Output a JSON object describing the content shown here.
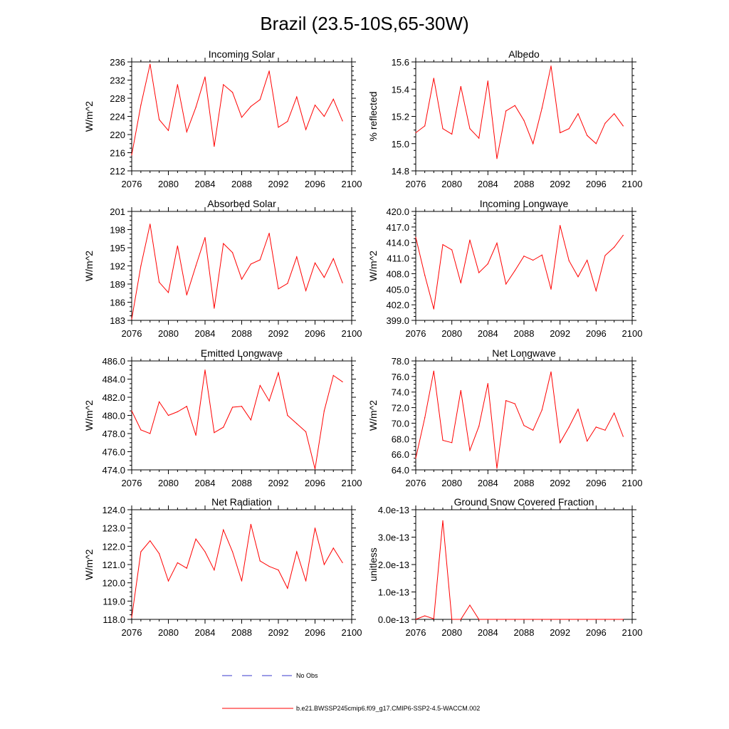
{
  "page": {
    "title": "Brazil (23.5-10S,65-30W)"
  },
  "colors": {
    "series": "#ff0000",
    "obs": "#3a3acc",
    "axis": "#000000"
  },
  "legend": {
    "obs_label": "No Obs",
    "model_label": "b.e21.BWSSP245cmip6.f09_g17.CMIP6-SSP2-4.5-WACCM.002"
  },
  "chart_data": [
    {
      "type": "line",
      "title": "Incoming Solar",
      "ylabel": "W/m^2",
      "xlim": [
        2076,
        2100
      ],
      "xticks": [
        2076,
        2080,
        2084,
        2088,
        2092,
        2096,
        2100
      ],
      "xtick_labels": [
        "2076",
        "2080",
        "2084",
        "2088",
        "2092",
        "2096",
        "2100"
      ],
      "ylim": [
        212,
        236
      ],
      "yticks": [
        212,
        216,
        220,
        224,
        228,
        232,
        236
      ],
      "ytick_labels": [
        "212",
        "216",
        "220",
        "224",
        "228",
        "232",
        "236"
      ],
      "x": [
        2076,
        2077,
        2078,
        2079,
        2080,
        2081,
        2082,
        2083,
        2084,
        2085,
        2086,
        2087,
        2088,
        2089,
        2090,
        2091,
        2092,
        2093,
        2094,
        2095,
        2096,
        2097,
        2098,
        2099
      ],
      "values": [
        215.5,
        226.5,
        235.5,
        223.3,
        220.9,
        231.0,
        220.6,
        226.0,
        232.7,
        217.4,
        231.0,
        229.3,
        223.8,
        226.2,
        227.7,
        234.0,
        221.6,
        222.9,
        228.3,
        221.1,
        226.5,
        224.0,
        227.8,
        223.0
      ]
    },
    {
      "type": "line",
      "title": "Albedo",
      "ylabel": "% reflected",
      "xlim": [
        2076,
        2100
      ],
      "xticks": [
        2076,
        2080,
        2084,
        2088,
        2092,
        2096,
        2100
      ],
      "xtick_labels": [
        "2076",
        "2080",
        "2084",
        "2088",
        "2092",
        "2096",
        "2100"
      ],
      "ylim": [
        14.8,
        15.6
      ],
      "yticks": [
        14.8,
        15.0,
        15.2,
        15.4,
        15.6
      ],
      "ytick_labels": [
        "14.8",
        "15.0",
        "15.2",
        "15.4",
        "15.6"
      ],
      "x": [
        2076,
        2077,
        2078,
        2079,
        2080,
        2081,
        2082,
        2083,
        2084,
        2085,
        2086,
        2087,
        2088,
        2089,
        2090,
        2091,
        2092,
        2093,
        2094,
        2095,
        2096,
        2097,
        2098,
        2099
      ],
      "values": [
        15.08,
        15.13,
        15.48,
        15.11,
        15.07,
        15.42,
        15.11,
        15.04,
        15.46,
        14.89,
        15.24,
        15.28,
        15.17,
        15.0,
        15.26,
        15.57,
        15.08,
        15.11,
        15.22,
        15.06,
        15.0,
        15.15,
        15.22,
        15.13
      ]
    },
    {
      "type": "line",
      "title": "Absorbed Solar",
      "ylabel": "W/m^2",
      "xlim": [
        2076,
        2100
      ],
      "xticks": [
        2076,
        2080,
        2084,
        2088,
        2092,
        2096,
        2100
      ],
      "xtick_labels": [
        "2076",
        "2080",
        "2084",
        "2088",
        "2092",
        "2096",
        "2100"
      ],
      "ylim": [
        183,
        201
      ],
      "yticks": [
        183,
        186,
        189,
        192,
        195,
        198,
        201
      ],
      "ytick_labels": [
        "183",
        "186",
        "189",
        "192",
        "195",
        "198",
        "201"
      ],
      "x": [
        2076,
        2077,
        2078,
        2079,
        2080,
        2081,
        2082,
        2083,
        2084,
        2085,
        2086,
        2087,
        2088,
        2089,
        2090,
        2091,
        2092,
        2093,
        2094,
        2095,
        2096,
        2097,
        2098,
        2099
      ],
      "values": [
        183.2,
        192.0,
        198.9,
        189.3,
        187.6,
        195.3,
        187.2,
        192.0,
        196.7,
        185.0,
        195.7,
        194.2,
        189.8,
        192.3,
        193.0,
        197.4,
        188.2,
        189.1,
        193.5,
        187.9,
        192.5,
        190.1,
        193.2,
        189.2
      ]
    },
    {
      "type": "line",
      "title": "Incoming Longwave",
      "ylabel": "W/m^2",
      "xlim": [
        2076,
        2100
      ],
      "xticks": [
        2076,
        2080,
        2084,
        2088,
        2092,
        2096,
        2100
      ],
      "xtick_labels": [
        "2076",
        "2080",
        "2084",
        "2088",
        "2092",
        "2096",
        "2100"
      ],
      "ylim": [
        399.0,
        420.0
      ],
      "yticks": [
        399,
        402,
        405,
        408,
        411,
        414,
        417,
        420
      ],
      "ytick_labels": [
        "399.0",
        "402.0",
        "405.0",
        "408.0",
        "411.0",
        "414.0",
        "417.0",
        "420.0"
      ],
      "x": [
        2076,
        2077,
        2078,
        2079,
        2080,
        2081,
        2082,
        2083,
        2084,
        2085,
        2086,
        2087,
        2088,
        2089,
        2090,
        2091,
        2092,
        2093,
        2094,
        2095,
        2096,
        2097,
        2098,
        2099
      ],
      "values": [
        415.0,
        407.7,
        401.2,
        413.6,
        412.6,
        406.2,
        414.5,
        408.2,
        409.9,
        413.9,
        406.0,
        408.6,
        411.4,
        410.6,
        411.6,
        405.0,
        417.3,
        410.5,
        407.4,
        410.6,
        404.7,
        411.5,
        413.1,
        415.4
      ]
    },
    {
      "type": "line",
      "title": "Emitted Longwave",
      "ylabel": "W/m^2",
      "xlim": [
        2076,
        2100
      ],
      "xticks": [
        2076,
        2080,
        2084,
        2088,
        2092,
        2096,
        2100
      ],
      "xtick_labels": [
        "2076",
        "2080",
        "2084",
        "2088",
        "2092",
        "2096",
        "2100"
      ],
      "ylim": [
        474.0,
        486.0
      ],
      "yticks": [
        474,
        476,
        478,
        480,
        482,
        484,
        486
      ],
      "ytick_labels": [
        "474.0",
        "476.0",
        "478.0",
        "480.0",
        "482.0",
        "484.0",
        "486.0"
      ],
      "x": [
        2076,
        2077,
        2078,
        2079,
        2080,
        2081,
        2082,
        2083,
        2084,
        2085,
        2086,
        2087,
        2088,
        2089,
        2090,
        2091,
        2092,
        2093,
        2094,
        2095,
        2096,
        2097,
        2098,
        2099
      ],
      "values": [
        480.5,
        478.4,
        478.0,
        481.5,
        480.0,
        480.4,
        481.0,
        477.8,
        485.0,
        478.1,
        478.7,
        480.9,
        481.0,
        479.5,
        483.3,
        481.6,
        484.7,
        480.0,
        479.1,
        478.2,
        474.1,
        480.5,
        484.4,
        483.7
      ]
    },
    {
      "type": "line",
      "title": "Net Longwave",
      "ylabel": "W/m^2",
      "xlim": [
        2076,
        2100
      ],
      "xticks": [
        2076,
        2080,
        2084,
        2088,
        2092,
        2096,
        2100
      ],
      "xtick_labels": [
        "2076",
        "2080",
        "2084",
        "2088",
        "2092",
        "2096",
        "2100"
      ],
      "ylim": [
        64.0,
        78.0
      ],
      "yticks": [
        64,
        66,
        68,
        70,
        72,
        74,
        76,
        78
      ],
      "ytick_labels": [
        "64.0",
        "66.0",
        "68.0",
        "70.0",
        "72.0",
        "74.0",
        "76.0",
        "78.0"
      ],
      "x": [
        2076,
        2077,
        2078,
        2079,
        2080,
        2081,
        2082,
        2083,
        2084,
        2085,
        2086,
        2087,
        2088,
        2089,
        2090,
        2091,
        2092,
        2093,
        2094,
        2095,
        2096,
        2097,
        2098,
        2099
      ],
      "values": [
        65.5,
        70.7,
        76.7,
        67.8,
        67.5,
        74.2,
        66.5,
        69.6,
        75.1,
        64.2,
        72.9,
        72.5,
        69.7,
        69.1,
        71.7,
        76.6,
        67.5,
        69.5,
        71.8,
        67.7,
        69.5,
        69.1,
        71.3,
        68.3
      ]
    },
    {
      "type": "line",
      "title": "Net Radiation",
      "ylabel": "W/m^2",
      "xlim": [
        2076,
        2100
      ],
      "xticks": [
        2076,
        2080,
        2084,
        2088,
        2092,
        2096,
        2100
      ],
      "xtick_labels": [
        "2076",
        "2080",
        "2084",
        "2088",
        "2092",
        "2096",
        "2100"
      ],
      "ylim": [
        118.0,
        124.0
      ],
      "yticks": [
        118,
        119,
        120,
        121,
        122,
        123,
        124
      ],
      "ytick_labels": [
        "118.0",
        "119.0",
        "120.0",
        "121.0",
        "122.0",
        "123.0",
        "124.0"
      ],
      "x": [
        2076,
        2077,
        2078,
        2079,
        2080,
        2081,
        2082,
        2083,
        2084,
        2085,
        2086,
        2087,
        2088,
        2089,
        2090,
        2091,
        2092,
        2093,
        2094,
        2095,
        2096,
        2097,
        2098,
        2099
      ],
      "values": [
        118.1,
        121.7,
        122.3,
        121.6,
        120.1,
        121.1,
        120.8,
        122.4,
        121.7,
        120.7,
        122.9,
        121.7,
        120.1,
        123.2,
        121.2,
        120.9,
        120.7,
        119.7,
        121.7,
        120.1,
        123.0,
        121.0,
        121.9,
        121.1
      ]
    },
    {
      "type": "line",
      "title": "Ground Snow Covered Fraction",
      "ylabel": "unitless",
      "xlim": [
        2076,
        2100
      ],
      "xticks": [
        2076,
        2080,
        2084,
        2088,
        2092,
        2096,
        2100
      ],
      "xtick_labels": [
        "2076",
        "2080",
        "2084",
        "2088",
        "2092",
        "2096",
        "2100"
      ],
      "ylim": [
        0.0,
        4e-13
      ],
      "yticks": [
        0.0,
        1e-13,
        2e-13,
        3e-13,
        4e-13
      ],
      "ytick_labels": [
        "0.0e-13",
        "1.0e-13",
        "2.0e-13",
        "3.0e-13",
        "4.0e-13"
      ],
      "x": [
        2076,
        2077,
        2078,
        2079,
        2080,
        2081,
        2082,
        2083,
        2084,
        2085,
        2086,
        2087,
        2088,
        2089,
        2090,
        2091,
        2092,
        2093,
        2094,
        2095,
        2096,
        2097,
        2098,
        2099
      ],
      "values": [
        0.0,
        1.3e-14,
        2e-15,
        3.6e-13,
        0.0,
        0.0,
        5.2e-14,
        0.0,
        0.0,
        0.0,
        0.0,
        0.0,
        0.0,
        0.0,
        0.0,
        0.0,
        0.0,
        0.0,
        0.0,
        0.0,
        0.0,
        0.0,
        0.0,
        0.0
      ]
    }
  ]
}
